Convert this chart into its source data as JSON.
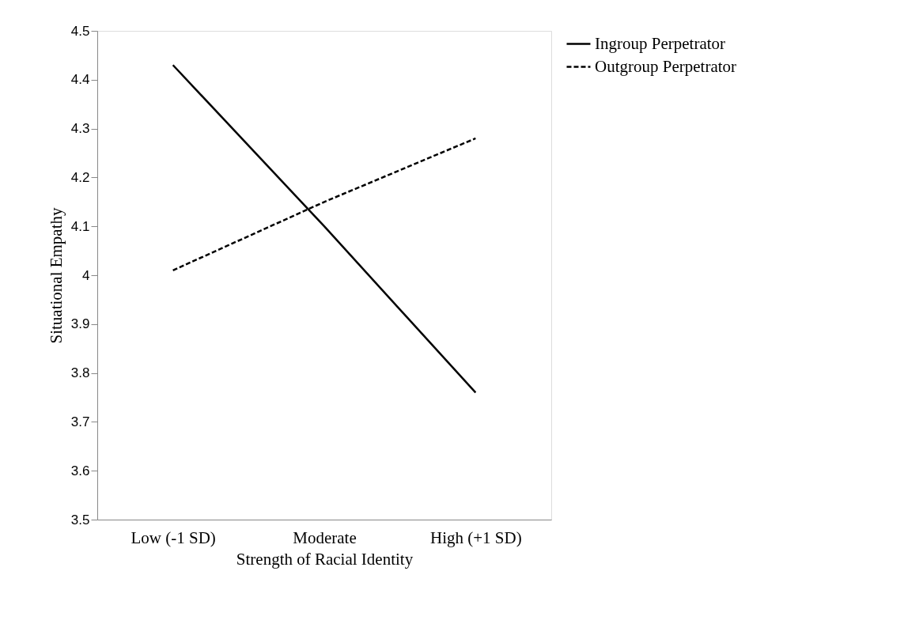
{
  "chart_data": {
    "type": "line",
    "xlabel": "Strength of Racial Identity",
    "ylabel": "Situational Empathy",
    "categories": [
      "Low (-1 SD)",
      "Moderate",
      "High (+1 SD)"
    ],
    "series": [
      {
        "name": "Ingroup Perpetrator",
        "color": "#000000",
        "line_style": "solid",
        "values": [
          4.43,
          4.1,
          3.76
        ]
      },
      {
        "name": "Outgroup Perpetrator",
        "color": "#000000",
        "line_style": "dashed",
        "values": [
          4.01,
          4.15,
          4.28
        ]
      }
    ],
    "ylim": [
      3.5,
      4.5
    ],
    "yticks": [
      3.5,
      3.6,
      3.7,
      3.8,
      3.9,
      4,
      4.1,
      4.2,
      4.3,
      4.4,
      4.5
    ],
    "grid": false,
    "legend": "right",
    "marker": "none"
  }
}
